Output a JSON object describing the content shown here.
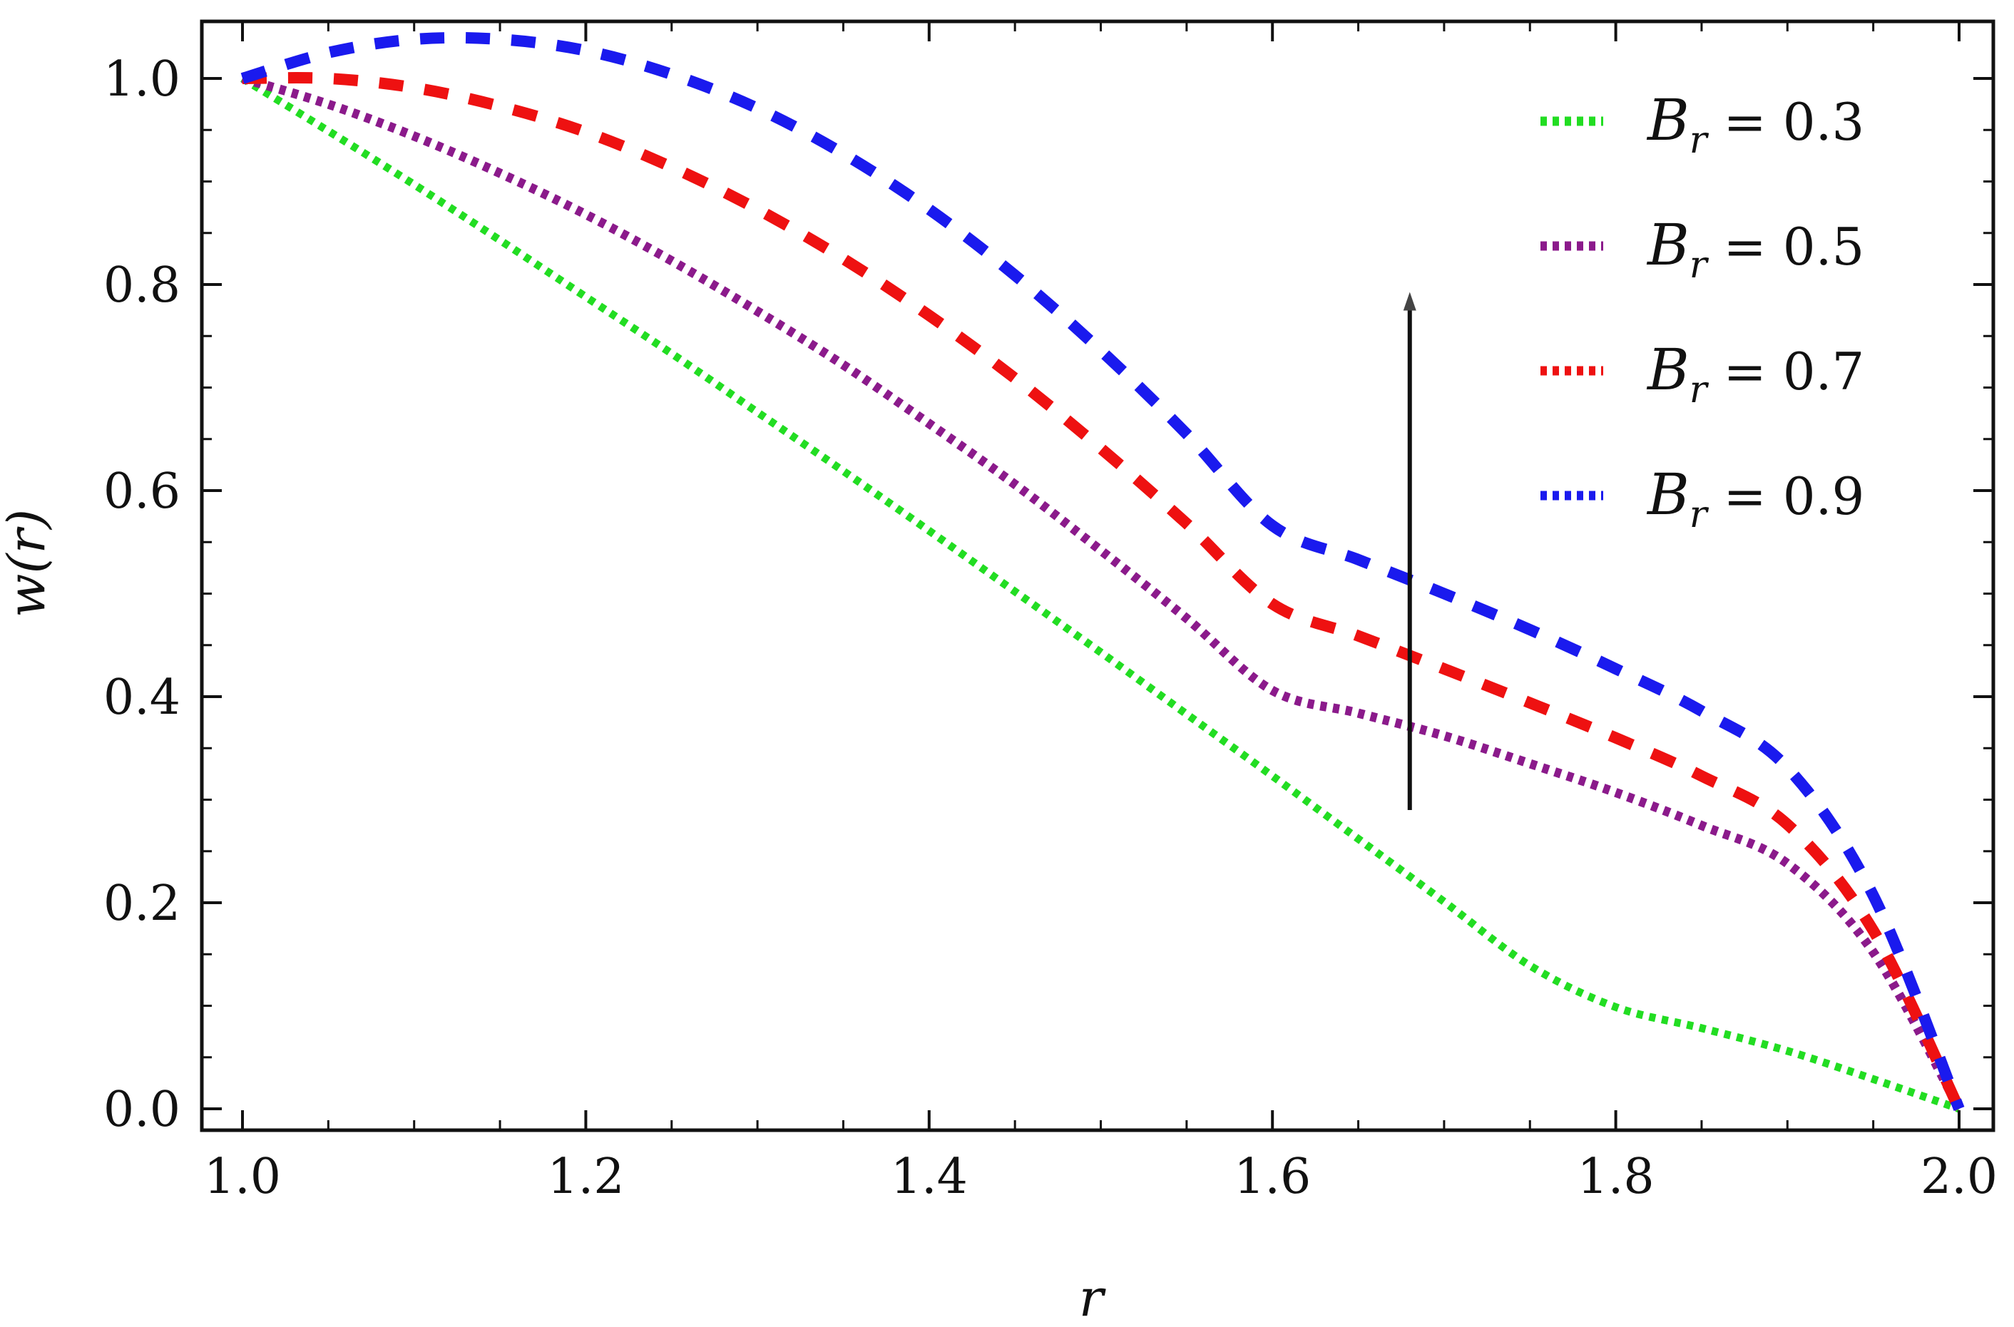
{
  "chart_data": {
    "type": "line",
    "xlabel": "r",
    "ylabel": "w(r)",
    "xlim": [
      1.0,
      2.0
    ],
    "ylim": [
      0.0,
      1.05
    ],
    "x_ticks": [
      "1.0",
      "1.2",
      "1.4",
      "1.6",
      "1.8",
      "2.0"
    ],
    "y_ticks": [
      "0.0",
      "0.2",
      "0.4",
      "0.6",
      "0.8",
      "1.0"
    ],
    "grid": false,
    "legend_position": "top-right",
    "x": [
      1.0,
      1.05,
      1.1,
      1.15,
      1.2,
      1.25,
      1.3,
      1.35,
      1.4,
      1.45,
      1.5,
      1.55,
      1.6,
      1.65,
      1.7,
      1.75,
      1.8,
      1.85,
      1.9,
      1.95,
      2.0
    ],
    "series": [
      {
        "name": "B_r = 0.3",
        "legend_symbol": "B",
        "legend_sub": "r",
        "legend_value": "= 0.3",
        "color": "#22dd22",
        "style": "dotted",
        "values": [
          1.0,
          0.949,
          0.897,
          0.843,
          0.788,
          0.733,
          0.676,
          0.619,
          0.561,
          0.502,
          0.443,
          0.383,
          0.323,
          0.262,
          0.201,
          0.139,
          0.0987,
          0.0783,
          0.0562,
          0.0288,
          0.0
        ]
      },
      {
        "name": "B_r = 0.5",
        "legend_symbol": "B",
        "legend_sub": "r",
        "legend_value": "= 0.5",
        "color": "#8b1a8b",
        "style": "dotted",
        "values": [
          1.0,
          0.975,
          0.944,
          0.908,
          0.868,
          0.823,
          0.774,
          0.722,
          0.665,
          0.606,
          0.542,
          0.476,
          0.406,
          0.384,
          0.362,
          0.335,
          0.307,
          0.275,
          0.238,
          0.152,
          0.0
        ]
      },
      {
        "name": "B_r = 0.7",
        "legend_symbol": "B",
        "legend_sub": "r",
        "legend_value": "= 0.7",
        "color": "#ee1111",
        "style": "dashed",
        "values": [
          1.0,
          1.0,
          0.991,
          0.973,
          0.948,
          0.914,
          0.873,
          0.825,
          0.77,
          0.709,
          0.641,
          0.568,
          0.49,
          0.459,
          0.427,
          0.394,
          0.36,
          0.323,
          0.276,
          0.173,
          0.0
        ]
      },
      {
        "name": "B_r = 0.9",
        "legend_symbol": "B",
        "legend_sub": "r",
        "legend_value": "= 0.9",
        "color": "#1a1aee",
        "style": "dashed",
        "values": [
          1.0,
          1.025,
          1.038,
          1.038,
          1.027,
          1.004,
          0.971,
          0.927,
          0.873,
          0.809,
          0.736,
          0.655,
          0.566,
          0.533,
          0.5,
          0.465,
          0.427,
          0.386,
          0.331,
          0.207,
          0.0
        ]
      }
    ],
    "annotation": {
      "type": "arrow",
      "x": 1.68,
      "y_start": 0.29,
      "y_end": 0.79
    }
  }
}
